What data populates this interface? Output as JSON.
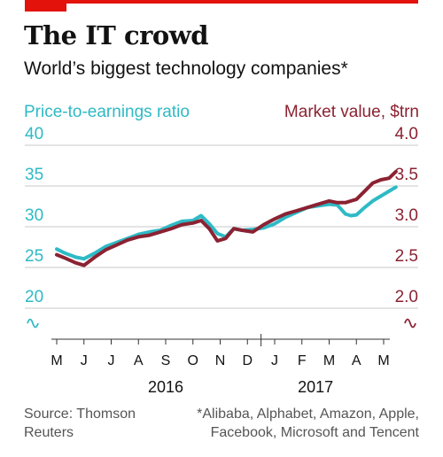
{
  "title": "The IT crowd",
  "subtitle": "World’s biggest technology companies*",
  "source": "Source: Thomson Reuters",
  "footnote": "*Alibaba, Alphabet, Amazon, Apple, Facebook, Microsoft and Tencent",
  "colors": {
    "accent": "#e3120b",
    "pe": "#2ebac5",
    "mv": "#8b2232",
    "grid": "#c9c9c9",
    "text": "#121212"
  },
  "chart_data": {
    "type": "line",
    "left_axis": {
      "label": "Price-to-earnings ratio",
      "ticks": [
        "40",
        "35",
        "30",
        "25",
        "20"
      ],
      "range": [
        20,
        40
      ],
      "break_below": true
    },
    "right_axis": {
      "label": "Market value, $trn",
      "ticks": [
        "4.0",
        "3.5",
        "3.0",
        "2.5",
        "2.0"
      ],
      "range": [
        2.0,
        4.0
      ],
      "break_below": true
    },
    "x_axis": {
      "months": [
        "M",
        "J",
        "J",
        "A",
        "S",
        "O",
        "N",
        "D",
        "J",
        "F",
        "M",
        "A",
        "M"
      ],
      "years": [
        {
          "label": "2016",
          "month_index": 4
        },
        {
          "label": "2017",
          "month_index": 9.5
        }
      ],
      "year_divider_month": 7.5
    },
    "grid": true,
    "series": [
      {
        "name": "Price-to-earnings ratio",
        "axis": "left",
        "x": [
          0,
          0.3,
          0.7,
          1.0,
          1.4,
          1.8,
          2.2,
          2.6,
          3.0,
          3.4,
          3.8,
          4.2,
          4.6,
          5.0,
          5.3,
          5.6,
          5.9,
          6.2,
          6.5,
          6.8,
          7.2,
          7.6,
          8.0,
          8.4,
          8.8,
          9.2,
          9.6,
          10.0,
          10.3,
          10.6,
          10.8,
          11.0,
          11.3,
          11.6,
          11.9,
          12.2,
          12.45
        ],
        "values": [
          26.5,
          26.0,
          25.5,
          25.3,
          26.0,
          26.8,
          27.3,
          27.8,
          28.3,
          28.6,
          28.8,
          29.4,
          29.9,
          30.0,
          30.6,
          29.6,
          28.4,
          28.0,
          29.0,
          28.8,
          28.9,
          29.1,
          29.6,
          30.4,
          31.0,
          31.6,
          31.8,
          32.0,
          31.9,
          30.8,
          30.6,
          30.7,
          31.6,
          32.4,
          33.0,
          33.6,
          34.1
        ]
      },
      {
        "name": "Market value, $trn",
        "axis": "right",
        "x": [
          0,
          0.3,
          0.7,
          1.0,
          1.4,
          1.8,
          2.2,
          2.6,
          3.0,
          3.4,
          3.8,
          4.2,
          4.6,
          5.0,
          5.3,
          5.6,
          5.9,
          6.2,
          6.5,
          6.8,
          7.2,
          7.6,
          8.0,
          8.4,
          8.8,
          9.2,
          9.6,
          10.0,
          10.3,
          10.6,
          10.8,
          11.0,
          11.3,
          11.6,
          11.9,
          12.2,
          12.45
        ],
        "values": [
          2.58,
          2.54,
          2.48,
          2.45,
          2.55,
          2.64,
          2.7,
          2.76,
          2.8,
          2.82,
          2.86,
          2.9,
          2.95,
          2.97,
          3.0,
          2.9,
          2.75,
          2.78,
          2.9,
          2.88,
          2.86,
          2.95,
          3.02,
          3.08,
          3.12,
          3.16,
          3.2,
          3.24,
          3.22,
          3.22,
          3.24,
          3.26,
          3.36,
          3.46,
          3.5,
          3.52,
          3.6
        ]
      }
    ]
  }
}
